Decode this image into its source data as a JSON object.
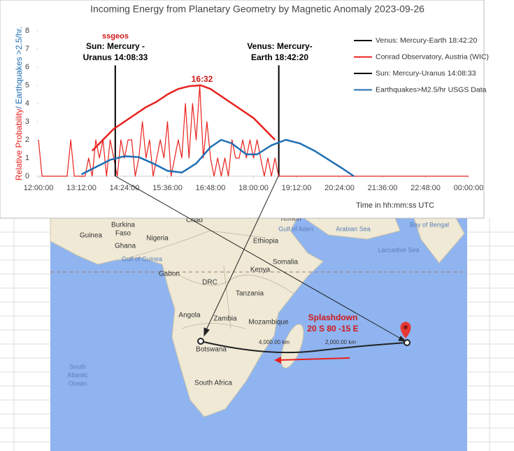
{
  "chart_data": {
    "type": "line",
    "title": "Incoming Energy from Planetary Geometry by Magnetic Anomaly 2023-09-26",
    "y_label": [
      "Relative Probability",
      "/ Earthquakes >2.5/hr."
    ],
    "x_label": "Time in hh:mm:ss UTC",
    "xlim": [
      12,
      24
    ],
    "ylim": [
      0,
      8
    ],
    "yticks": [
      0,
      1,
      2,
      3,
      4,
      5,
      6,
      7,
      8
    ],
    "xticks": [
      {
        "value": 12,
        "label": "12:00:00"
      },
      {
        "value": 13.2,
        "label": "13:12:00"
      },
      {
        "value": 14.4,
        "label": "14:24:00"
      },
      {
        "value": 15.6,
        "label": "15:36:00"
      },
      {
        "value": 16.8,
        "label": "16:48:00"
      },
      {
        "value": 18,
        "label": "18:00:00"
      },
      {
        "value": 19.2,
        "label": "19:12:00"
      },
      {
        "value": 20.4,
        "label": "20:24:00"
      },
      {
        "value": 21.6,
        "label": "21:36:00"
      },
      {
        "value": 22.8,
        "label": "22:48:00"
      },
      {
        "value": 24,
        "label": "00:00:00"
      }
    ],
    "series": [
      {
        "name": "Venus: Mercury-Earth 18:42:20",
        "color": "#000000",
        "x": [
          18.7056,
          18.7056
        ],
        "values": [
          0,
          6.1
        ]
      },
      {
        "name": "Conrad Observatory, Austria (WIC)",
        "color": "#e8201c",
        "x": [
          12.0,
          12.1,
          12.2,
          12.3,
          12.4,
          12.5,
          12.6,
          12.7,
          12.8,
          12.9,
          13.0,
          13.1,
          13.2,
          13.3,
          13.4,
          13.5,
          13.6,
          13.7,
          13.8,
          13.9,
          14.0,
          14.1,
          14.2,
          14.3,
          14.4,
          14.5,
          14.6,
          14.7,
          14.8,
          14.9,
          15.0,
          15.1,
          15.2,
          15.3,
          15.4,
          15.5,
          15.6,
          15.7,
          15.8,
          15.9,
          16.0,
          16.1,
          16.2,
          16.3,
          16.4,
          16.5,
          16.6,
          16.7,
          16.8,
          16.9,
          17.0,
          17.1,
          17.2,
          17.3,
          17.4,
          17.5,
          17.6,
          17.7,
          17.8,
          17.9,
          18.0,
          18.1,
          18.2,
          18.3,
          18.4,
          18.5,
          18.6,
          18.7,
          18.8,
          18.9,
          19.0,
          24.0
        ],
        "values": [
          2,
          0,
          0,
          0,
          0,
          0,
          0,
          0,
          0,
          2,
          0,
          0,
          0,
          0,
          1,
          0,
          2,
          1,
          2,
          0,
          2,
          1,
          0,
          2,
          1,
          2,
          2,
          0,
          1,
          3,
          1,
          2,
          0,
          1,
          2,
          1,
          3,
          0,
          1,
          2,
          1,
          4,
          1,
          4,
          2,
          5,
          1,
          3,
          1,
          0,
          1,
          0,
          1,
          0,
          2,
          1,
          1,
          2,
          1,
          2,
          1,
          2,
          1,
          0,
          1,
          0,
          1,
          0,
          0,
          0,
          0,
          0
        ]
      },
      {
        "name": "Sun: Mercury-Uranus 14:08:33",
        "color": "#000000",
        "x": [
          14.1425,
          14.1425
        ],
        "values": [
          0,
          6.1
        ]
      },
      {
        "name": "Earthquakes>M2.5/hr USGS Data",
        "color": "#1f6fb4",
        "x": [
          13.2,
          13.6,
          14.0,
          14.4,
          14.8,
          15.2,
          15.6,
          16.0,
          16.4,
          16.8,
          17.1,
          17.4,
          17.8,
          18.1,
          18.5,
          18.9,
          19.3,
          19.7,
          20.1,
          20.5,
          20.8
        ],
        "values": [
          0.1,
          0.5,
          0.9,
          1.1,
          1.05,
          0.7,
          0.3,
          0.2,
          0.7,
          1.6,
          2.0,
          1.8,
          1.2,
          1.2,
          1.7,
          2.0,
          1.8,
          1.4,
          0.9,
          0.4,
          0
        ]
      },
      {
        "color": "#e8201c",
        "x": [
          13.5,
          13.8,
          14.1,
          14.4,
          14.7,
          15.0,
          15.3,
          15.6,
          15.9,
          16.2,
          16.53,
          16.8,
          17.1,
          17.4,
          17.7,
          18.0,
          18.3,
          18.6
        ],
        "values": [
          1.4,
          2.0,
          2.6,
          3.0,
          3.4,
          3.8,
          4.1,
          4.5,
          4.8,
          4.95,
          5.0,
          4.8,
          4.4,
          4.0,
          3.6,
          3.2,
          2.6,
          2.0
        ]
      }
    ],
    "annotations": [
      "ssgeos",
      "Sun: Mercury -",
      "Uranus 14:08:33",
      "Venus: Mercury-",
      "Earth 18:42:20",
      "16:32"
    ]
  },
  "map": {
    "labels": [
      "Chad",
      "Yemen",
      "Gulf of Aden",
      "Arabian Sea",
      "Bay of Bengal",
      "Guinea",
      "Burkina",
      "Faso",
      "Ghana",
      "Nigeria",
      "Ethiopia",
      "Laccadive Sea",
      "Gulf of Guinea",
      "Somalia",
      "Kenya",
      "Gabon",
      "DRC",
      "Tanzania",
      "Angola",
      "Zambia",
      "Mozambique",
      "Botswana",
      "South Africa",
      "South",
      "Atlantic",
      "Ocean",
      "4,000.00 km",
      "2,000.00 km"
    ],
    "annotations": [
      "Splashdown",
      "20 S  80 -15 E"
    ]
  }
}
